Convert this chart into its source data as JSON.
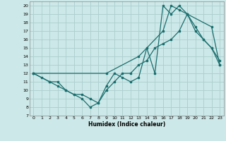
{
  "xlabel": "Humidex (Indice chaleur)",
  "bg_color": "#cde8e8",
  "line_color": "#1a6e6e",
  "grid_color": "#aacece",
  "xlim": [
    -0.5,
    23.5
  ],
  "ylim": [
    7,
    20.5
  ],
  "yticks": [
    7,
    8,
    9,
    10,
    11,
    12,
    13,
    14,
    15,
    16,
    17,
    18,
    19,
    20
  ],
  "xticks": [
    0,
    1,
    2,
    3,
    4,
    5,
    6,
    7,
    8,
    9,
    10,
    11,
    12,
    13,
    14,
    15,
    16,
    17,
    18,
    19,
    20,
    21,
    22,
    23
  ],
  "line1_x": [
    0,
    1,
    2,
    3,
    4,
    5,
    6,
    7,
    8,
    9,
    10,
    11,
    12,
    13,
    14,
    15,
    16,
    17,
    18,
    19,
    20,
    21,
    22,
    23
  ],
  "line1_y": [
    12,
    11.5,
    11,
    11,
    10,
    9.5,
    9,
    8,
    8.5,
    10,
    11,
    12,
    12,
    13,
    13.5,
    15,
    15.5,
    16,
    17,
    19,
    17,
    16,
    15,
    13
  ],
  "line2_x": [
    0,
    2,
    3,
    4,
    5,
    6,
    7,
    8,
    9,
    10,
    11,
    12,
    13,
    14,
    15,
    16,
    17,
    18,
    19,
    20,
    21,
    22,
    23
  ],
  "line2_y": [
    12,
    11,
    10.5,
    10,
    9.5,
    9.5,
    9,
    8.5,
    10.5,
    12,
    11.5,
    11,
    11.5,
    15,
    12,
    20,
    19,
    20,
    19,
    17.5,
    16,
    15,
    13.5
  ],
  "line3_x": [
    0,
    9,
    13,
    16,
    17,
    18,
    19,
    22,
    23
  ],
  "line3_y": [
    12,
    12,
    14,
    17,
    20,
    19.5,
    19,
    17.5,
    13
  ]
}
